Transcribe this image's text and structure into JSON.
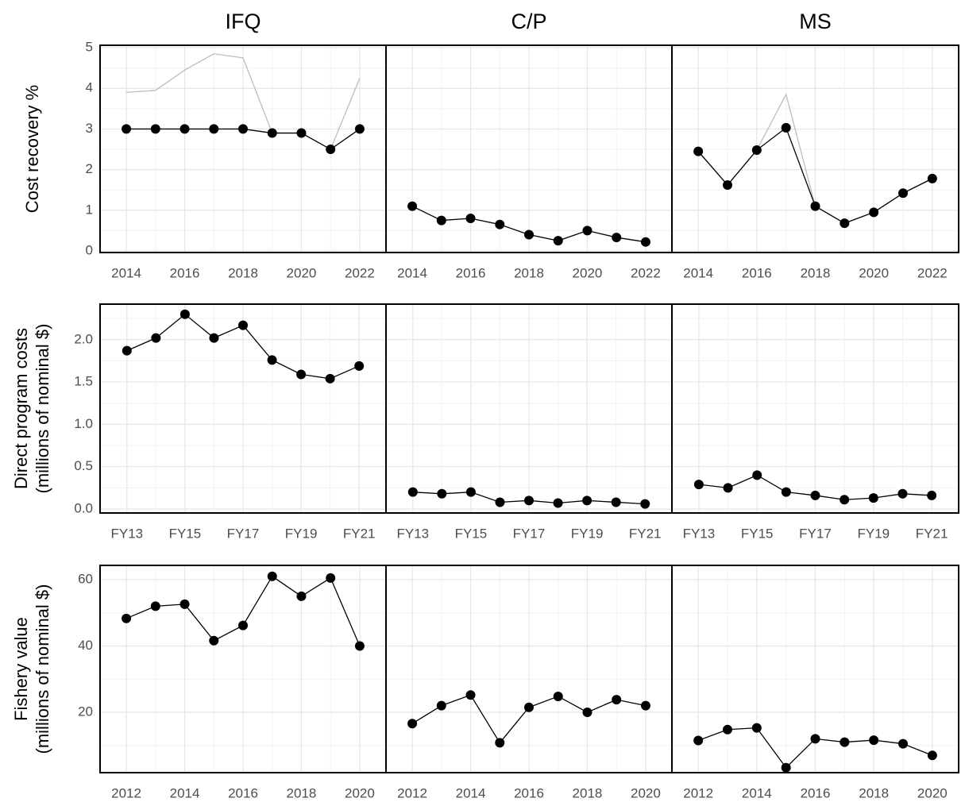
{
  "chart_data": [
    {
      "type": "line",
      "title": "IFQ",
      "ylabel": [
        "Cost recovery %"
      ],
      "x": [
        2014,
        2015,
        2016,
        2017,
        2018,
        2019,
        2020,
        2021,
        2022
      ],
      "xlim": [
        2013.1,
        2022.9
      ],
      "xticks": [
        2014,
        2016,
        2018,
        2020,
        2022
      ],
      "ylim": [
        -0.04,
        5.06
      ],
      "yticks": [
        0,
        1,
        2,
        3,
        4,
        5
      ],
      "series": [
        {
          "color": "#bdbdbd",
          "values": [
            3.9,
            3.95,
            4.45,
            4.85,
            4.75,
            2.9,
            2.9,
            2.5,
            4.25
          ]
        },
        {
          "color": "#000000",
          "values": [
            3,
            3,
            3,
            3,
            3,
            2.9,
            2.9,
            2.5,
            3
          ]
        }
      ]
    },
    {
      "type": "line",
      "title": "C/P",
      "x": [
        2014,
        2015,
        2016,
        2017,
        2018,
        2019,
        2020,
        2021,
        2022
      ],
      "xlim": [
        2013.1,
        2022.9
      ],
      "xticks": [
        2014,
        2016,
        2018,
        2020,
        2022
      ],
      "series": [
        {
          "color": "#000000",
          "values": [
            1.1,
            0.75,
            0.8,
            0.65,
            0.4,
            0.25,
            0.5,
            0.33,
            0.22
          ]
        }
      ]
    },
    {
      "type": "line",
      "title": "MS",
      "x": [
        2014,
        2015,
        2016,
        2017,
        2018,
        2019,
        2020,
        2021,
        2022
      ],
      "xlim": [
        2013.1,
        2022.9
      ],
      "xticks": [
        2014,
        2016,
        2018,
        2020,
        2022
      ],
      "series": [
        {
          "color": "#bdbdbd",
          "values": [
            2.45,
            1.62,
            2.48,
            3.85,
            1.1,
            0.68,
            0.95,
            1.42,
            1.78
          ]
        },
        {
          "color": "#000000",
          "values": [
            2.45,
            1.62,
            2.48,
            3.03,
            1.1,
            0.68,
            0.95,
            1.42,
            1.78
          ]
        }
      ]
    },
    {
      "type": "line",
      "ylabel": [
        "Direct program costs",
        "(millions of nominal $)"
      ],
      "categories": [
        "FY13",
        null,
        "FY15",
        null,
        "FY17",
        null,
        "FY19",
        null,
        "FY21"
      ],
      "ylim": [
        -0.047,
        2.42
      ],
      "yticks": [
        {
          "value": 0,
          "label": "0.0"
        },
        0.5,
        {
          "value": 1,
          "label": "1.0"
        },
        1.5,
        {
          "value": 2,
          "label": "2.0"
        }
      ],
      "series": [
        {
          "color": "#000000",
          "values": [
            1.87,
            2.02,
            2.3,
            2.02,
            2.17,
            1.76,
            1.59,
            1.54,
            1.69
          ]
        }
      ]
    },
    {
      "type": "line",
      "categories": [
        "FY13",
        null,
        "FY15",
        null,
        "FY17",
        null,
        "FY19",
        null,
        "FY21"
      ],
      "series": [
        {
          "color": "#000000",
          "values": [
            0.2,
            0.18,
            0.2,
            0.08,
            0.1,
            0.07,
            0.1,
            0.08,
            0.06
          ]
        }
      ]
    },
    {
      "type": "line",
      "categories": [
        "FY13",
        null,
        "FY15",
        null,
        "FY17",
        null,
        "FY19",
        null,
        "FY21"
      ],
      "series": [
        {
          "color": "#000000",
          "values": [
            0.29,
            0.25,
            0.4,
            0.2,
            0.16,
            0.11,
            0.13,
            0.18,
            0.16
          ]
        }
      ]
    },
    {
      "type": "line",
      "ylabel": [
        "Fishery value",
        "(millions of nominal $)"
      ],
      "x": [
        2012,
        2013,
        2014,
        2015,
        2016,
        2017,
        2018,
        2019,
        2020
      ],
      "xlim": [
        2011.1,
        2020.9
      ],
      "xticks": [
        2012,
        2014,
        2016,
        2018,
        2020
      ],
      "ylim": [
        1.8,
        64.3
      ],
      "yticks": [
        20,
        40,
        60
      ],
      "series": [
        {
          "color": "#000000",
          "values": [
            48.3,
            52,
            52.6,
            41.6,
            46.2,
            61,
            55,
            60.5,
            40
          ]
        }
      ]
    },
    {
      "type": "line",
      "x": [
        2012,
        2013,
        2014,
        2015,
        2016,
        2017,
        2018,
        2019,
        2020
      ],
      "xlim": [
        2011.1,
        2020.9
      ],
      "xticks": [
        2012,
        2014,
        2016,
        2018,
        2020
      ],
      "series": [
        {
          "color": "#000000",
          "values": [
            16.6,
            22,
            25.2,
            10.8,
            21.5,
            24.8,
            20,
            23.8,
            22
          ]
        }
      ]
    },
    {
      "type": "line",
      "x": [
        2012,
        2013,
        2014,
        2015,
        2016,
        2017,
        2018,
        2019,
        2020
      ],
      "xlim": [
        2011.1,
        2020.9
      ],
      "xticks": [
        2012,
        2014,
        2016,
        2018,
        2020
      ],
      "series": [
        {
          "color": "#000000",
          "values": [
            11.5,
            14.8,
            15.3,
            3.3,
            12,
            11,
            11.6,
            10.5,
            7
          ]
        }
      ]
    }
  ]
}
